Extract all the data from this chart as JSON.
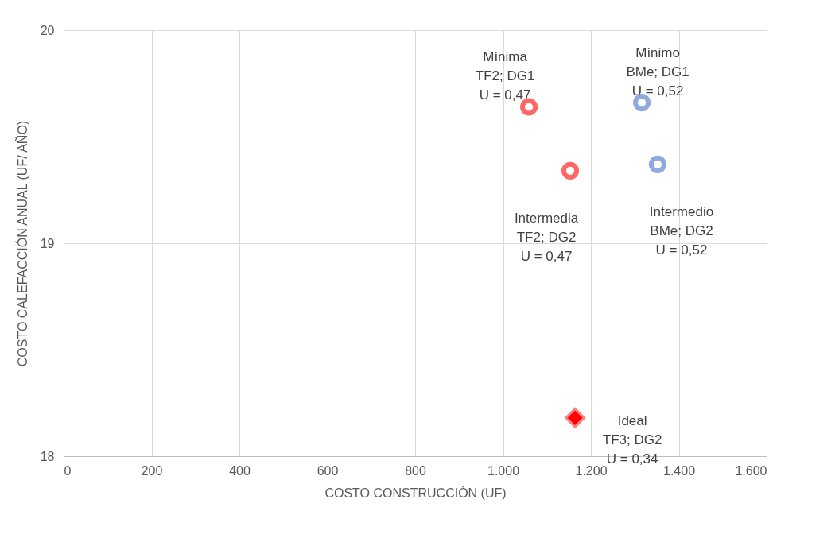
{
  "chart_data": {
    "type": "scatter",
    "xlabel": "COSTO CONSTRUCCIÓN (UF)",
    "ylabel": "COSTO CALEFACCIÓN ANUAL (UF/ AÑO)",
    "xlim": [
      0,
      1600
    ],
    "xticks": [
      0,
      200,
      400,
      600,
      800,
      {
        "value": 1000,
        "label": "1.000"
      },
      {
        "value": 1200,
        "label": "1.200"
      },
      {
        "value": 1400,
        "label": "1.400"
      },
      {
        "value": 1600,
        "label": "1.600"
      }
    ],
    "ylim": [
      18,
      20
    ],
    "yticks": [
      18,
      19,
      20
    ],
    "grid": true,
    "series": [
      {
        "color": "#ff6666",
        "marker": "circle",
        "x": [
          1059,
          1153
        ],
        "values": [
          19.64,
          19.34
        ]
      },
      {
        "color": "#8faadc",
        "marker": "circle",
        "x": [
          1316,
          1352
        ],
        "values": [
          19.66,
          19.37
        ]
      },
      {
        "color": "#ff0000",
        "marker": "diamond",
        "x": [
          1164
        ],
        "values": [
          18.18
        ]
      }
    ],
    "annotations": [
      {
        "text": "Mínima\nTF2; DG1\nU = 0,47",
        "x": 1059,
        "y": 19.64
      },
      {
        "text": "Intermedia\nTF2; DG2\nU = 0,47",
        "x": 1153,
        "y": 19.34
      },
      {
        "text": "Mínimo\nBMe; DG1\nU = 0,52",
        "x": 1316,
        "y": 19.66
      },
      {
        "text": "Intermedio\nBMe; DG2\nU = 0,52",
        "x": 1352,
        "y": 19.37
      },
      {
        "text": "Ideal\nTF3; DG2\nU = 0,34",
        "x": 1164,
        "y": 18.18
      }
    ]
  }
}
